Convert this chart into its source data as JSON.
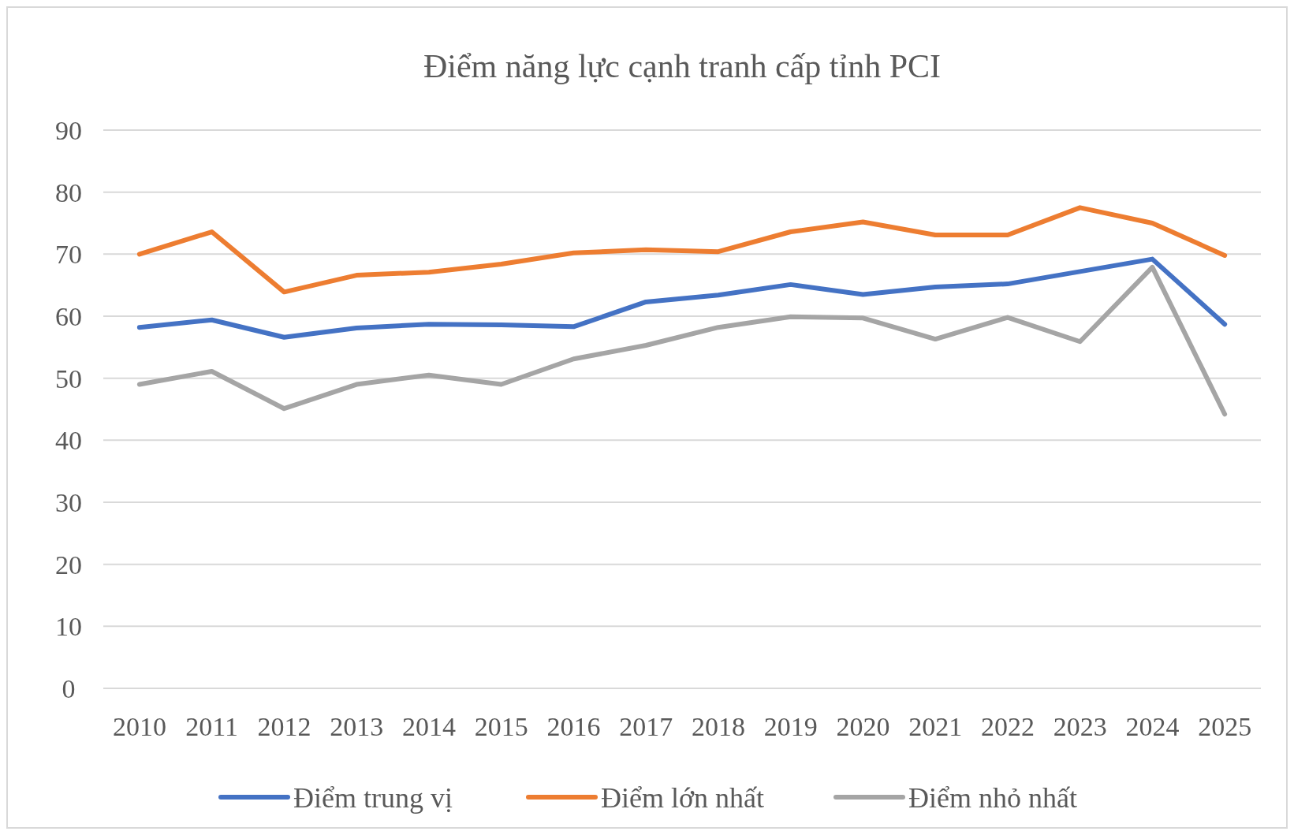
{
  "chart_data": {
    "type": "line",
    "title": "Điểm năng lực cạnh tranh cấp tỉnh PCI",
    "categories": [
      "2010",
      "2011",
      "2012",
      "2013",
      "2014",
      "2015",
      "2016",
      "2017",
      "2018",
      "2019",
      "2020",
      "2021",
      "2022",
      "2023",
      "2024",
      "2025"
    ],
    "series": [
      {
        "name": "Điểm trung vị",
        "color": "#4472c4",
        "values": [
          58.2,
          59.4,
          56.6,
          58.1,
          58.7,
          58.6,
          58.3,
          62.3,
          63.4,
          65.1,
          63.5,
          64.7,
          65.2,
          67.2,
          69.2,
          58.7
        ]
      },
      {
        "name": "Điểm lớn nhất",
        "color": "#ed7d31",
        "values": [
          70,
          73.6,
          63.9,
          66.6,
          67.1,
          68.4,
          70.2,
          70.7,
          70.4,
          73.6,
          75.2,
          73.1,
          73.1,
          77.5,
          75,
          69.8
        ]
      },
      {
        "name": "Điểm nhỏ nhất",
        "color": "#a5a5a5",
        "values": [
          49,
          51.1,
          45.1,
          49,
          50.5,
          49,
          53.1,
          55.3,
          58.2,
          59.9,
          59.7,
          56.3,
          59.8,
          55.9,
          67.9,
          44.2
        ]
      }
    ],
    "ylim": [
      0,
      90
    ],
    "yticks": [
      0,
      10,
      20,
      30,
      40,
      50,
      60,
      70,
      80,
      90
    ],
    "grid": "y",
    "legend": "bottom",
    "marker": "none",
    "line_style": "solid"
  }
}
